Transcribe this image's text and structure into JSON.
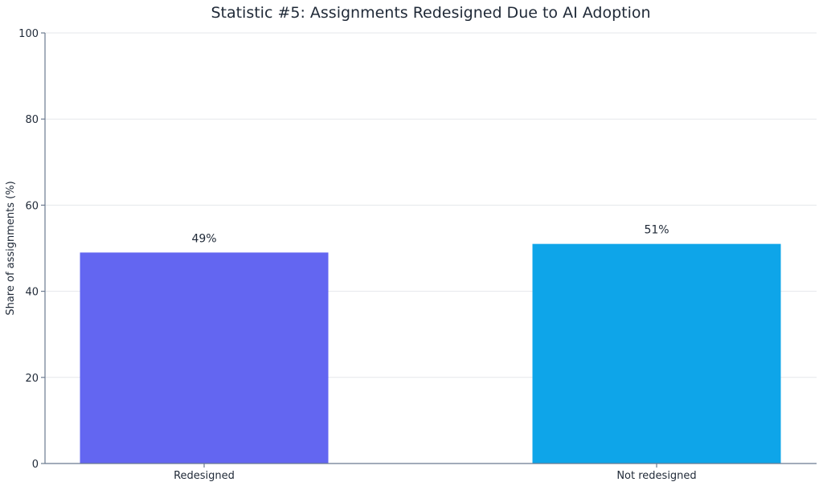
{
  "chart_data": {
    "type": "bar",
    "title": "Statistic #5: Assignments Redesigned Due to AI Adoption",
    "xlabel": "",
    "ylabel": "Share of assignments (%)",
    "categories": [
      "Redesigned",
      "Not redesigned"
    ],
    "values": [
      49,
      51
    ],
    "data_labels": [
      "49%",
      "51%"
    ],
    "colors": [
      "#6366f1",
      "#0ea5e9"
    ],
    "ylim": [
      0,
      100
    ],
    "yticks": [
      0,
      20,
      40,
      60,
      80,
      100
    ],
    "grid": true,
    "legend": "none"
  }
}
